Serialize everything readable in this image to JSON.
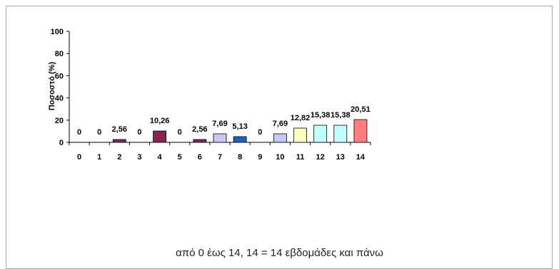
{
  "chart_data": {
    "type": "bar",
    "title": "",
    "ylabel": "Ποσοστό (%)",
    "xlabel": "από 0 έως 14, 14 = 14 εβδομάδες και πάνω",
    "ylim": [
      0,
      100
    ],
    "yticks": [
      0,
      20,
      40,
      60,
      80,
      100
    ],
    "categories": [
      "0",
      "1",
      "2",
      "3",
      "4",
      "5",
      "6",
      "7",
      "8",
      "9",
      "10",
      "11",
      "12",
      "13",
      "14"
    ],
    "values": [
      0,
      0,
      2.56,
      0,
      10.26,
      0,
      2.56,
      7.69,
      5.13,
      0,
      7.69,
      12.82,
      15.38,
      15.38,
      20.51
    ],
    "labels": [
      "0",
      "0",
      "2,56",
      "0",
      "10,26",
      "0",
      "2,56",
      "7,69",
      "5,13",
      "0",
      "7,69",
      "12,82",
      "15,38",
      "15,38",
      "20,51"
    ],
    "colors": [
      "#7b2b5a",
      "#7b2b5a",
      "#7b2b5a",
      "#7b2b5a",
      "#8b2252",
      "#7b2b5a",
      "#7b2b5a",
      "#c8c8f4",
      "#1f5fbf",
      "#c8c8f4",
      "#c8c8f4",
      "#ffffc4",
      "#c4ffff",
      "#c4ffff",
      "#ff7f7f"
    ],
    "grid": false,
    "legend": "none"
  }
}
